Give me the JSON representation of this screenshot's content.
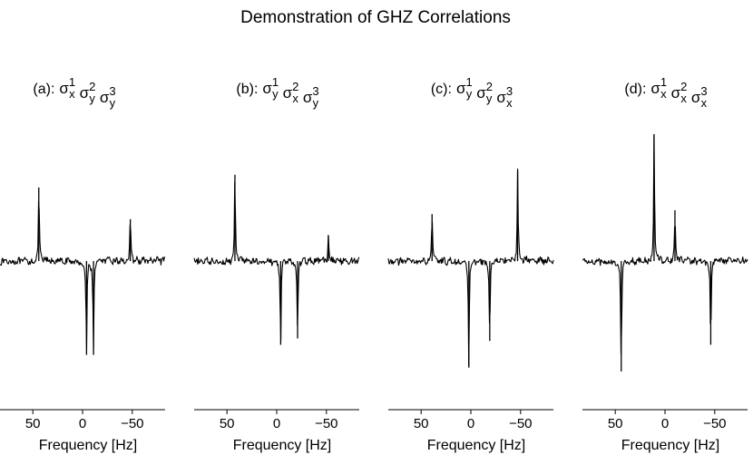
{
  "chart_data": {
    "type": "line",
    "title": "Demonstration of GHZ Correlations",
    "xlabel": "Frequency [Hz]",
    "ylabel": "",
    "x_reversed": true,
    "xticks": [
      50,
      0,
      -50
    ],
    "tick_labels": [
      "50",
      "0",
      "−50"
    ],
    "xlim": [
      83,
      -83
    ],
    "ylim": [
      -1.0,
      1.0
    ],
    "grid": false,
    "legend": "none",
    "line_color": "#000000",
    "panels": [
      {
        "label": "(a):",
        "ops": [
          {
            "sym": "σ",
            "sub": "x",
            "sup": "1"
          },
          {
            "sym": "σ",
            "sub": "y",
            "sup": "2"
          },
          {
            "sym": "σ",
            "sub": "y",
            "sup": "3"
          }
        ],
        "lines": [
          {
            "x": 44,
            "a": 0.58
          },
          {
            "x": -4,
            "a": -0.74
          },
          {
            "x": -11,
            "a": -0.74
          },
          {
            "x": -48,
            "a": 0.33
          }
        ]
      },
      {
        "label": "(b):",
        "ops": [
          {
            "sym": "σ",
            "sub": "y",
            "sup": "1"
          },
          {
            "sym": "σ",
            "sub": "x",
            "sup": "2"
          },
          {
            "sym": "σ",
            "sub": "y",
            "sup": "3"
          }
        ],
        "lines": [
          {
            "x": 42,
            "a": 0.68
          },
          {
            "x": -4,
            "a": -0.66
          },
          {
            "x": -21,
            "a": -0.61
          },
          {
            "x": -52,
            "a": 0.2
          }
        ]
      },
      {
        "label": "(c):",
        "ops": [
          {
            "sym": "σ",
            "sub": "y",
            "sup": "1"
          },
          {
            "sym": "σ",
            "sub": "y",
            "sup": "2"
          },
          {
            "sym": "σ",
            "sub": "x",
            "sup": "3"
          }
        ],
        "lines": [
          {
            "x": 39,
            "a": 0.37
          },
          {
            "x": 2,
            "a": -0.84
          },
          {
            "x": -19,
            "a": -0.63
          },
          {
            "x": -47,
            "a": 0.71
          }
        ]
      },
      {
        "label": "(d):",
        "ops": [
          {
            "sym": "σ",
            "sub": "x",
            "sup": "1"
          },
          {
            "sym": "σ",
            "sub": "x",
            "sup": "2"
          },
          {
            "sym": "σ",
            "sub": "x",
            "sup": "3"
          }
        ],
        "lines": [
          {
            "x": 44,
            "a": -0.87
          },
          {
            "x": 11,
            "a": 1.0
          },
          {
            "x": -10,
            "a": 0.4
          },
          {
            "x": -46,
            "a": -0.66
          }
        ]
      }
    ]
  }
}
